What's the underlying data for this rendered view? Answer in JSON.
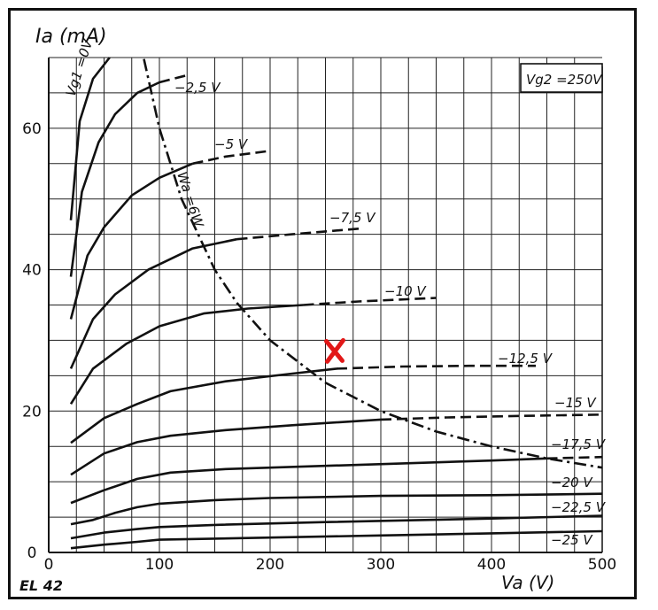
{
  "chart_data": {
    "type": "line",
    "ylabel": "Ia (mA)",
    "xlabel": "Va (V)",
    "model": "EL 42",
    "condition": "Vg2 =250V",
    "x_ticks": [
      "0",
      "100",
      "200",
      "300",
      "400",
      "500"
    ],
    "y_ticks": [
      "0",
      "20",
      "40",
      "60"
    ],
    "xlim": [
      0,
      500
    ],
    "ylim": [
      0,
      70
    ],
    "grid": true,
    "series": [
      {
        "name": "Vg1 =0V",
        "x": [
          20,
          28,
          40,
          55
        ],
        "y": [
          47,
          61,
          67,
          70
        ]
      },
      {
        "name": "−2,5 V",
        "x": [
          20,
          30,
          45,
          60,
          80,
          100,
          125
        ],
        "y": [
          39,
          51,
          58,
          62,
          65,
          66.5,
          67.5
        ],
        "dashed_from": 90
      },
      {
        "name": "−5 V",
        "x": [
          20,
          35,
          50,
          75,
          100,
          130,
          160,
          200
        ],
        "y": [
          33,
          42,
          46,
          50.5,
          53,
          55,
          56,
          56.8
        ],
        "dashed_from": 120
      },
      {
        "name": "−7,5 V",
        "x": [
          20,
          40,
          60,
          90,
          130,
          170,
          220,
          280
        ],
        "y": [
          26,
          33,
          36.5,
          40,
          43,
          44.3,
          45,
          45.8
        ],
        "dashed_from": 140
      },
      {
        "name": "−10 V",
        "x": [
          20,
          40,
          70,
          100,
          140,
          180,
          230,
          280,
          350
        ],
        "y": [
          21,
          26,
          29.5,
          32,
          33.8,
          34.5,
          35,
          35.5,
          36
        ],
        "dashed_from": 220
      },
      {
        "name": "−12,5 V",
        "x": [
          20,
          50,
          80,
          110,
          160,
          220,
          260,
          320,
          380,
          440
        ],
        "y": [
          15.5,
          19,
          21,
          22.8,
          24.2,
          25.3,
          26,
          26.3,
          26.4,
          26.4
        ],
        "dashed_from": 250
      },
      {
        "name": "−15 V",
        "x": [
          20,
          50,
          80,
          110,
          160,
          220,
          300,
          360,
          420,
          500
        ],
        "y": [
          11,
          14,
          15.6,
          16.5,
          17.3,
          18,
          18.8,
          19.1,
          19.3,
          19.5
        ],
        "dashed_from": 300
      },
      {
        "name": "−17,5 V",
        "x": [
          20,
          50,
          80,
          110,
          160,
          240,
          320,
          400,
          450,
          500
        ],
        "y": [
          7,
          8.8,
          10.4,
          11.3,
          11.8,
          12.2,
          12.6,
          13,
          13.3,
          13.5
        ],
        "dashed_from": 440
      },
      {
        "name": "−20 V",
        "x": [
          20,
          40,
          60,
          80,
          100,
          150,
          200,
          300,
          400,
          500
        ],
        "y": [
          4,
          4.6,
          5.6,
          6.4,
          6.9,
          7.4,
          7.7,
          8,
          8.1,
          8.3
        ]
      },
      {
        "name": "−22,5 V",
        "x": [
          20,
          50,
          80,
          100,
          150,
          250,
          400,
          500
        ],
        "y": [
          2,
          2.8,
          3.3,
          3.6,
          3.9,
          4.3,
          4.8,
          5.2
        ]
      },
      {
        "name": "−25 V",
        "x": [
          20,
          50,
          80,
          100,
          200,
          300,
          400,
          500
        ],
        "y": [
          0.6,
          1.1,
          1.5,
          1.8,
          2.1,
          2.4,
          2.7,
          3
        ]
      }
    ],
    "power_curve": {
      "name": "Wa =6W",
      "x": [
        86,
        100,
        120,
        150,
        170,
        200,
        250,
        300,
        350,
        400,
        450,
        500
      ],
      "y": [
        69.8,
        60,
        50,
        40,
        35.3,
        30,
        24,
        20,
        17.1,
        15,
        13.3,
        12
      ]
    },
    "marker": {
      "symbol": "✕",
      "color": "#e21818",
      "x": 258,
      "y": 28.5
    }
  }
}
